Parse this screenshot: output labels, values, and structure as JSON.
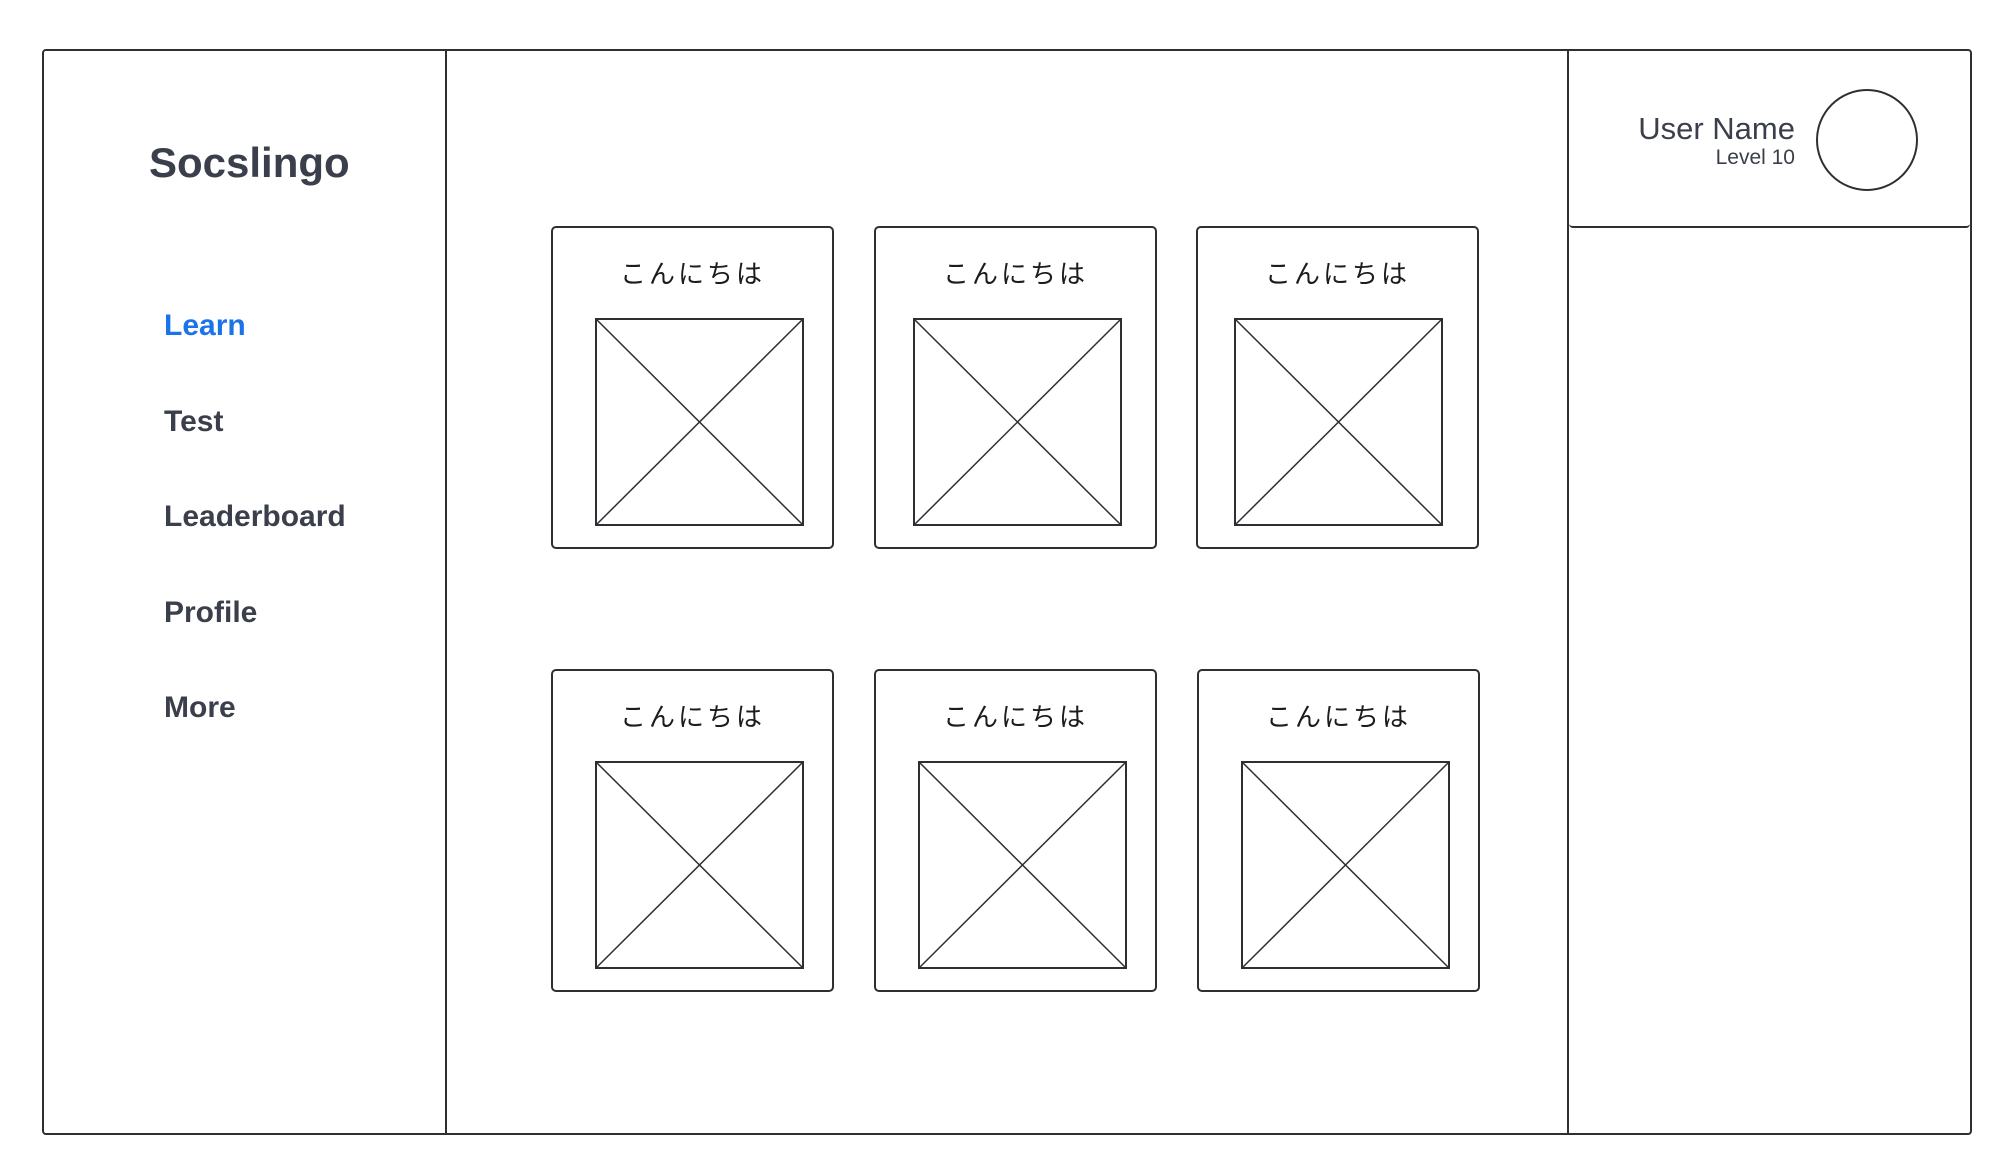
{
  "app": {
    "title": "Socslingo"
  },
  "sidebar": {
    "items": [
      {
        "label": "Learn",
        "active": true
      },
      {
        "label": "Test",
        "active": false
      },
      {
        "label": "Leaderboard",
        "active": false
      },
      {
        "label": "Profile",
        "active": false
      },
      {
        "label": "More",
        "active": false
      }
    ]
  },
  "user": {
    "name": "User Name",
    "level": "Level 10"
  },
  "lessons": [
    {
      "label": "こんにちは",
      "image_icon": "image-placeholder-icon"
    },
    {
      "label": "こんにちは",
      "image_icon": "image-placeholder-icon"
    },
    {
      "label": "こんにちは",
      "image_icon": "image-placeholder-icon"
    },
    {
      "label": "こんにちは",
      "image_icon": "image-placeholder-icon"
    },
    {
      "label": "こんにちは",
      "image_icon": "image-placeholder-icon"
    },
    {
      "label": "こんにちは",
      "image_icon": "image-placeholder-icon"
    }
  ],
  "colors": {
    "accent": "#1a73e8",
    "text": "#3a3f4b",
    "border": "#2d2f33"
  }
}
